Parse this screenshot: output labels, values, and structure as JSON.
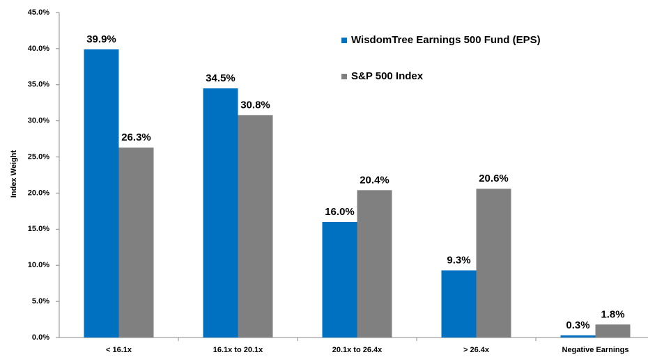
{
  "chart_data": {
    "type": "bar",
    "y_label": "Index Weight",
    "categories": [
      "< 16.1x",
      "16.1x to 20.1x",
      "20.1x to 26.4x",
      "> 26.4x",
      "Negative Earnings"
    ],
    "series": [
      {
        "name": "WisdomTree Earnings 500 Fund (EPS)",
        "color": "#0070c0",
        "values": [
          39.9,
          34.5,
          16.0,
          9.3,
          0.3
        ],
        "value_labels": [
          "39.9%",
          "34.5%",
          "16.0%",
          "9.3%",
          "0.3%"
        ]
      },
      {
        "name": "S&P 500 Index",
        "color": "#808080",
        "values": [
          26.3,
          30.8,
          20.4,
          20.6,
          1.8
        ],
        "value_labels": [
          "26.3%",
          "30.8%",
          "20.4%",
          "20.6%",
          "1.8%"
        ]
      }
    ],
    "ylim": [
      0,
      45
    ],
    "yticks": [
      {
        "value": 0,
        "label": "0.0%"
      },
      {
        "value": 5,
        "label": "5.0%"
      },
      {
        "value": 10,
        "label": "10.0%"
      },
      {
        "value": 15,
        "label": "15.0%"
      },
      {
        "value": 20,
        "label": "20.0%"
      },
      {
        "value": 25,
        "label": "25.0%"
      },
      {
        "value": 30,
        "label": "30.0%"
      },
      {
        "value": 35,
        "label": "35.0%"
      },
      {
        "value": 40,
        "label": "40.0%"
      },
      {
        "value": 45,
        "label": "45.0%"
      }
    ],
    "grid": false,
    "legend": "top-right"
  }
}
